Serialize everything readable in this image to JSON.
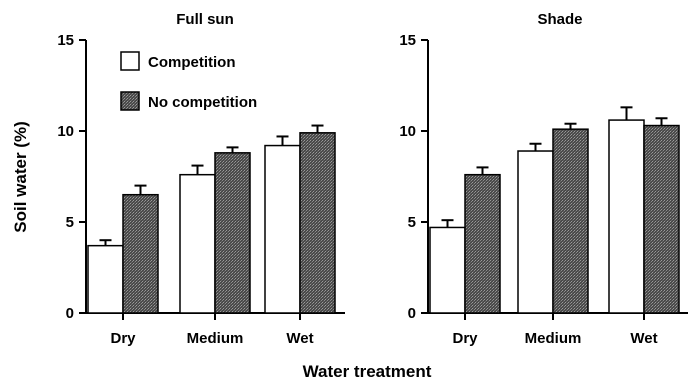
{
  "figure": {
    "ylabel": "Soil water (%)",
    "xlabel": "Water treatment"
  },
  "chart_data": [
    {
      "type": "bar",
      "title": "Full sun",
      "categories": [
        "Dry",
        "Medium",
        "Wet"
      ],
      "series": [
        {
          "name": "Competition",
          "values": [
            3.7,
            7.6,
            9.2
          ],
          "errors": [
            0.3,
            0.5,
            0.5
          ],
          "color": "#ffffff"
        },
        {
          "name": "No competition",
          "values": [
            6.5,
            8.8,
            9.9
          ],
          "errors": [
            0.5,
            0.3,
            0.4
          ],
          "color": "#555555"
        }
      ],
      "ylim": [
        0,
        15
      ],
      "yticks": [
        0,
        5,
        10,
        15
      ],
      "xlabel": "Water treatment",
      "ylabel": "Soil water (%)",
      "grid": false,
      "legend": "top-left"
    },
    {
      "type": "bar",
      "title": "Shade",
      "categories": [
        "Dry",
        "Medium",
        "Wet"
      ],
      "series": [
        {
          "name": "Competition",
          "values": [
            4.7,
            8.9,
            10.6
          ],
          "errors": [
            0.4,
            0.4,
            0.7
          ],
          "color": "#ffffff"
        },
        {
          "name": "No competition",
          "values": [
            7.6,
            10.1,
            10.3
          ],
          "errors": [
            0.4,
            0.3,
            0.4
          ],
          "color": "#555555"
        }
      ],
      "ylim": [
        0,
        15
      ],
      "yticks": [
        0,
        5,
        10,
        15
      ],
      "grid": false
    }
  ]
}
